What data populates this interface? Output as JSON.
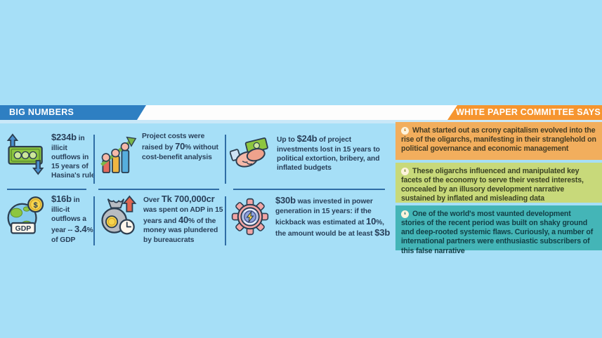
{
  "colors": {
    "background": "#a6dff7",
    "band_blue": "#2e7fc2",
    "band_orange": "#f6952f",
    "quote_orange_bg": "#f2ae5d",
    "quote_olive_bg": "#c8d97a",
    "quote_teal_bg": "#44b5b7",
    "divider": "#2f6da5",
    "stat_text": "#29405a"
  },
  "big_numbers": {
    "title": "BIG NUMBERS",
    "items": [
      {
        "icon": "cash-flow-icon",
        "segments": [
          {
            "t": "$234b",
            "b": true
          },
          {
            "t": " in illicit outflows in 15 years of Hasina's rule",
            "b": false
          }
        ]
      },
      {
        "icon": "rising-costs-icon",
        "segments": [
          {
            "t": "Project costs were raised by ",
            "b": false
          },
          {
            "t": "70",
            "b": true
          },
          {
            "t": "% without cost-benefit analysis",
            "b": false
          }
        ]
      },
      {
        "icon": "bribery-handshake-icon",
        "segments": [
          {
            "t": "Up to ",
            "b": false
          },
          {
            "t": "$24b",
            "b": true
          },
          {
            "t": " of project investments lost in 15 years to political extortion, bribery, and inflated budgets",
            "b": false
          }
        ]
      },
      {
        "icon": "globe-gdp-icon",
        "segments": [
          {
            "t": "$16b",
            "b": true
          },
          {
            "t": " in illic-it outflows a year -- ",
            "b": false
          },
          {
            "t": "3.4",
            "b": true
          },
          {
            "t": "% of GDP",
            "b": false
          }
        ]
      },
      {
        "icon": "money-bag-clock-icon",
        "segments": [
          {
            "t": "Over ",
            "b": false
          },
          {
            "t": "Tk 700,000cr",
            "b": true
          },
          {
            "t": " was spent on ADP in 15 years and ",
            "b": false
          },
          {
            "t": "40",
            "b": true
          },
          {
            "t": "% of the money was plundered by bureaucrats",
            "b": false
          }
        ]
      },
      {
        "icon": "power-gear-icon",
        "segments": [
          {
            "t": "$30b",
            "b": true
          },
          {
            "t": " was invested in power generation in 15 years: if the kickback was estimated at ",
            "b": false
          },
          {
            "t": "10",
            "b": true
          },
          {
            "t": "%, the amount would be at least ",
            "b": false
          },
          {
            "t": "$3b",
            "b": true
          }
        ]
      }
    ]
  },
  "white_paper": {
    "title": "WHITE PAPER COMMITTEE SAYS",
    "quotes": [
      {
        "icon": "quote-icon",
        "text": "What started out as crony capitalism evolved into the rise of the oligarchs, manifesting in their stranglehold on political governance and economic management"
      },
      {
        "icon": "quote-icon",
        "text": "These oligarchs influenced and manipulated key facets of the economy to serve their vested interests, concealed by an illusory development narrative sustained by inflated and misleading data"
      },
      {
        "icon": "quote-icon",
        "text": "One of the world's most vaunted development stories of the recent period was built on shaky ground and deep-rooted systemic flaws. Curiously, a number of international partners were enthusiastic subscribers of this false narrative"
      }
    ]
  }
}
